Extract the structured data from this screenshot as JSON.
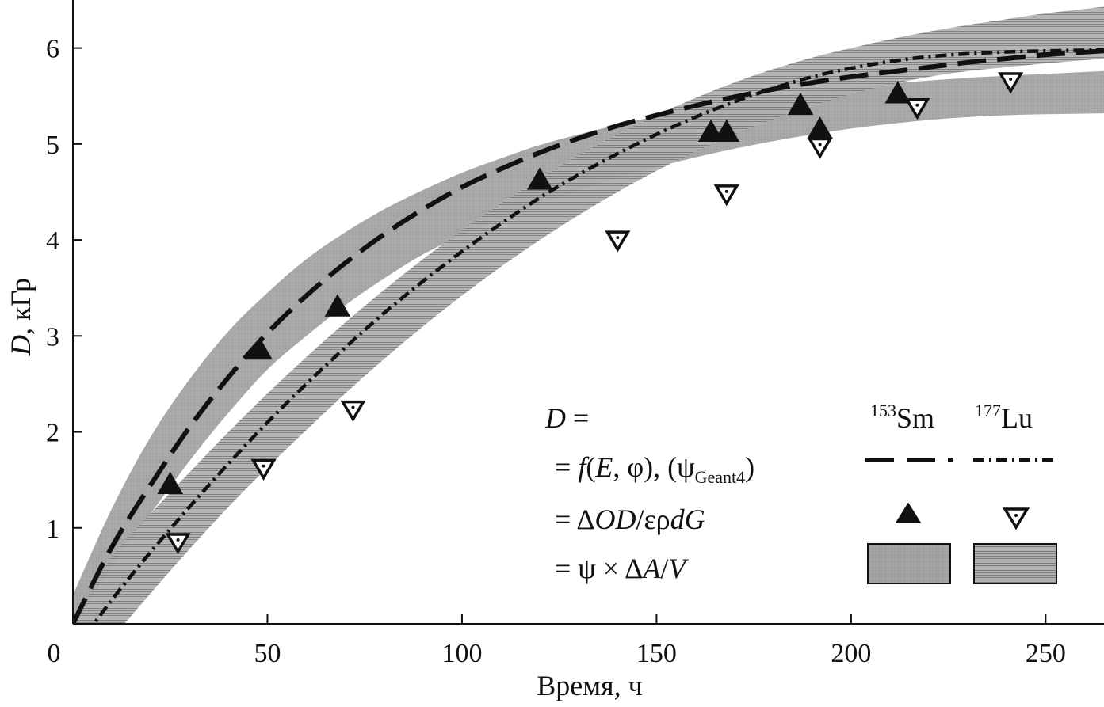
{
  "chart_data": {
    "type": "line",
    "xlabel": "Время, ч",
    "ylabel_italic": "D",
    "ylabel_rest": ", кГр",
    "x_origin_label": "0",
    "xlim": [
      0,
      265
    ],
    "ylim": [
      0,
      6.5
    ],
    "x_ticks": [
      50,
      100,
      150,
      200,
      250
    ],
    "x_tick_labels": [
      "50",
      "100",
      "150",
      "200",
      "250"
    ],
    "y_ticks": [
      1,
      2,
      3,
      4,
      5,
      6
    ],
    "y_tick_labels": [
      "1",
      "2",
      "3",
      "4",
      "5",
      "6"
    ],
    "grid": false,
    "legend_position": "bottom-right",
    "series": [
      {
        "name": "153Sm",
        "style": "dashed",
        "x": [
          0,
          10,
          20,
          30,
          40,
          50,
          60,
          70,
          80,
          90,
          100,
          110,
          120,
          130,
          140,
          150,
          160,
          170,
          180,
          190,
          200,
          210,
          220,
          230,
          240,
          250,
          265
        ],
        "y": [
          0,
          0.8,
          1.45,
          2.05,
          2.57,
          3.03,
          3.42,
          3.76,
          4.06,
          4.32,
          4.55,
          4.74,
          4.91,
          5.06,
          5.19,
          5.3,
          5.4,
          5.49,
          5.57,
          5.64,
          5.7,
          5.75,
          5.8,
          5.85,
          5.89,
          5.93,
          5.97
        ]
      },
      {
        "name": "177Lu",
        "style": "dash-dot",
        "x": [
          0,
          10,
          20,
          30,
          40,
          50,
          60,
          70,
          80,
          90,
          100,
          110,
          120,
          130,
          140,
          150,
          160,
          170,
          180,
          190,
          200,
          210,
          220,
          230,
          240,
          250,
          265
        ],
        "y": [
          -0.3,
          0.25,
          0.75,
          1.22,
          1.67,
          2.1,
          2.5,
          2.88,
          3.24,
          3.57,
          3.88,
          4.17,
          4.44,
          4.68,
          4.9,
          5.1,
          5.28,
          5.44,
          5.58,
          5.7,
          5.79,
          5.86,
          5.91,
          5.94,
          5.96,
          5.97,
          5.98
        ]
      }
    ],
    "bands": [
      {
        "name": "153Sm",
        "style": "solid-gray",
        "color": "#9e9e9e",
        "x": [
          0,
          10,
          20,
          30,
          40,
          50,
          60,
          70,
          80,
          90,
          100,
          110,
          120,
          130,
          140,
          150,
          160,
          170,
          180,
          190,
          200,
          210,
          220,
          230,
          240,
          250,
          265
        ],
        "upper": [
          0.3,
          1.2,
          1.95,
          2.55,
          3.05,
          3.45,
          3.8,
          4.08,
          4.32,
          4.52,
          4.7,
          4.85,
          4.99,
          5.1,
          5.2,
          5.29,
          5.37,
          5.44,
          5.5,
          5.55,
          5.59,
          5.63,
          5.66,
          5.69,
          5.71,
          5.73,
          5.76
        ],
        "lower": [
          -0.05,
          0.6,
          1.15,
          1.7,
          2.2,
          2.65,
          3.0,
          3.32,
          3.6,
          3.85,
          4.05,
          4.22,
          4.38,
          4.52,
          4.65,
          4.76,
          4.86,
          4.95,
          5.03,
          5.1,
          5.16,
          5.21,
          5.25,
          5.28,
          5.3,
          5.31,
          5.32
        ]
      },
      {
        "name": "177Lu",
        "style": "hatched-gray",
        "color": "#a8a8a8",
        "x": [
          0,
          10,
          20,
          30,
          40,
          50,
          60,
          70,
          80,
          90,
          100,
          110,
          120,
          130,
          140,
          150,
          160,
          170,
          180,
          190,
          200,
          210,
          220,
          230,
          240,
          250,
          265
        ],
        "upper": [
          0.0,
          0.7,
          1.15,
          1.58,
          2.0,
          2.4,
          2.78,
          3.14,
          3.48,
          3.8,
          4.1,
          4.38,
          4.64,
          4.88,
          5.1,
          5.3,
          5.48,
          5.64,
          5.78,
          5.9,
          6.0,
          6.09,
          6.17,
          6.24,
          6.3,
          6.36,
          6.43
        ],
        "lower": [
          -0.6,
          -0.15,
          0.32,
          0.78,
          1.22,
          1.63,
          2.02,
          2.4,
          2.76,
          3.1,
          3.42,
          3.72,
          4.0,
          4.26,
          4.5,
          4.72,
          4.92,
          5.1,
          5.26,
          5.4,
          5.52,
          5.62,
          5.7,
          5.76,
          5.8,
          5.84,
          5.89
        ]
      }
    ],
    "points": [
      {
        "name": "153Sm",
        "marker": "filled-triangle-up",
        "x": [
          25,
          48,
          68,
          120,
          164,
          168,
          187,
          192,
          212
        ],
        "y": [
          1.45,
          2.85,
          3.3,
          4.62,
          5.12,
          5.12,
          5.4,
          5.15,
          5.52
        ]
      },
      {
        "name": "177Lu",
        "marker": "open-triangle-down-dot",
        "x": [
          27,
          49,
          72,
          140,
          168,
          192,
          217,
          241
        ],
        "y": [
          0.85,
          1.62,
          2.23,
          4.0,
          4.48,
          4.97,
          5.38,
          5.65
        ]
      }
    ],
    "legend": {
      "header_lhs_italic": "D",
      "header_lhs_rest": " =",
      "col1_sup": "153",
      "col1_main": "Sm",
      "col2_sup": "177",
      "col2_main": "Lu",
      "row1_a": "= ",
      "row1_f": "f",
      "row1_b": "(",
      "row1_E": "E",
      "row1_c": ", φ), (ψ",
      "row1_sub": "Geant4",
      "row1_d": ")",
      "row2_a": "= Δ",
      "row2_OD": "OD",
      "row2_b": "/ερ",
      "row2_dG": "dG",
      "row3_a": "= ψ × Δ",
      "row3_A": "A",
      "row3_b": "/",
      "row3_V": "V"
    }
  }
}
